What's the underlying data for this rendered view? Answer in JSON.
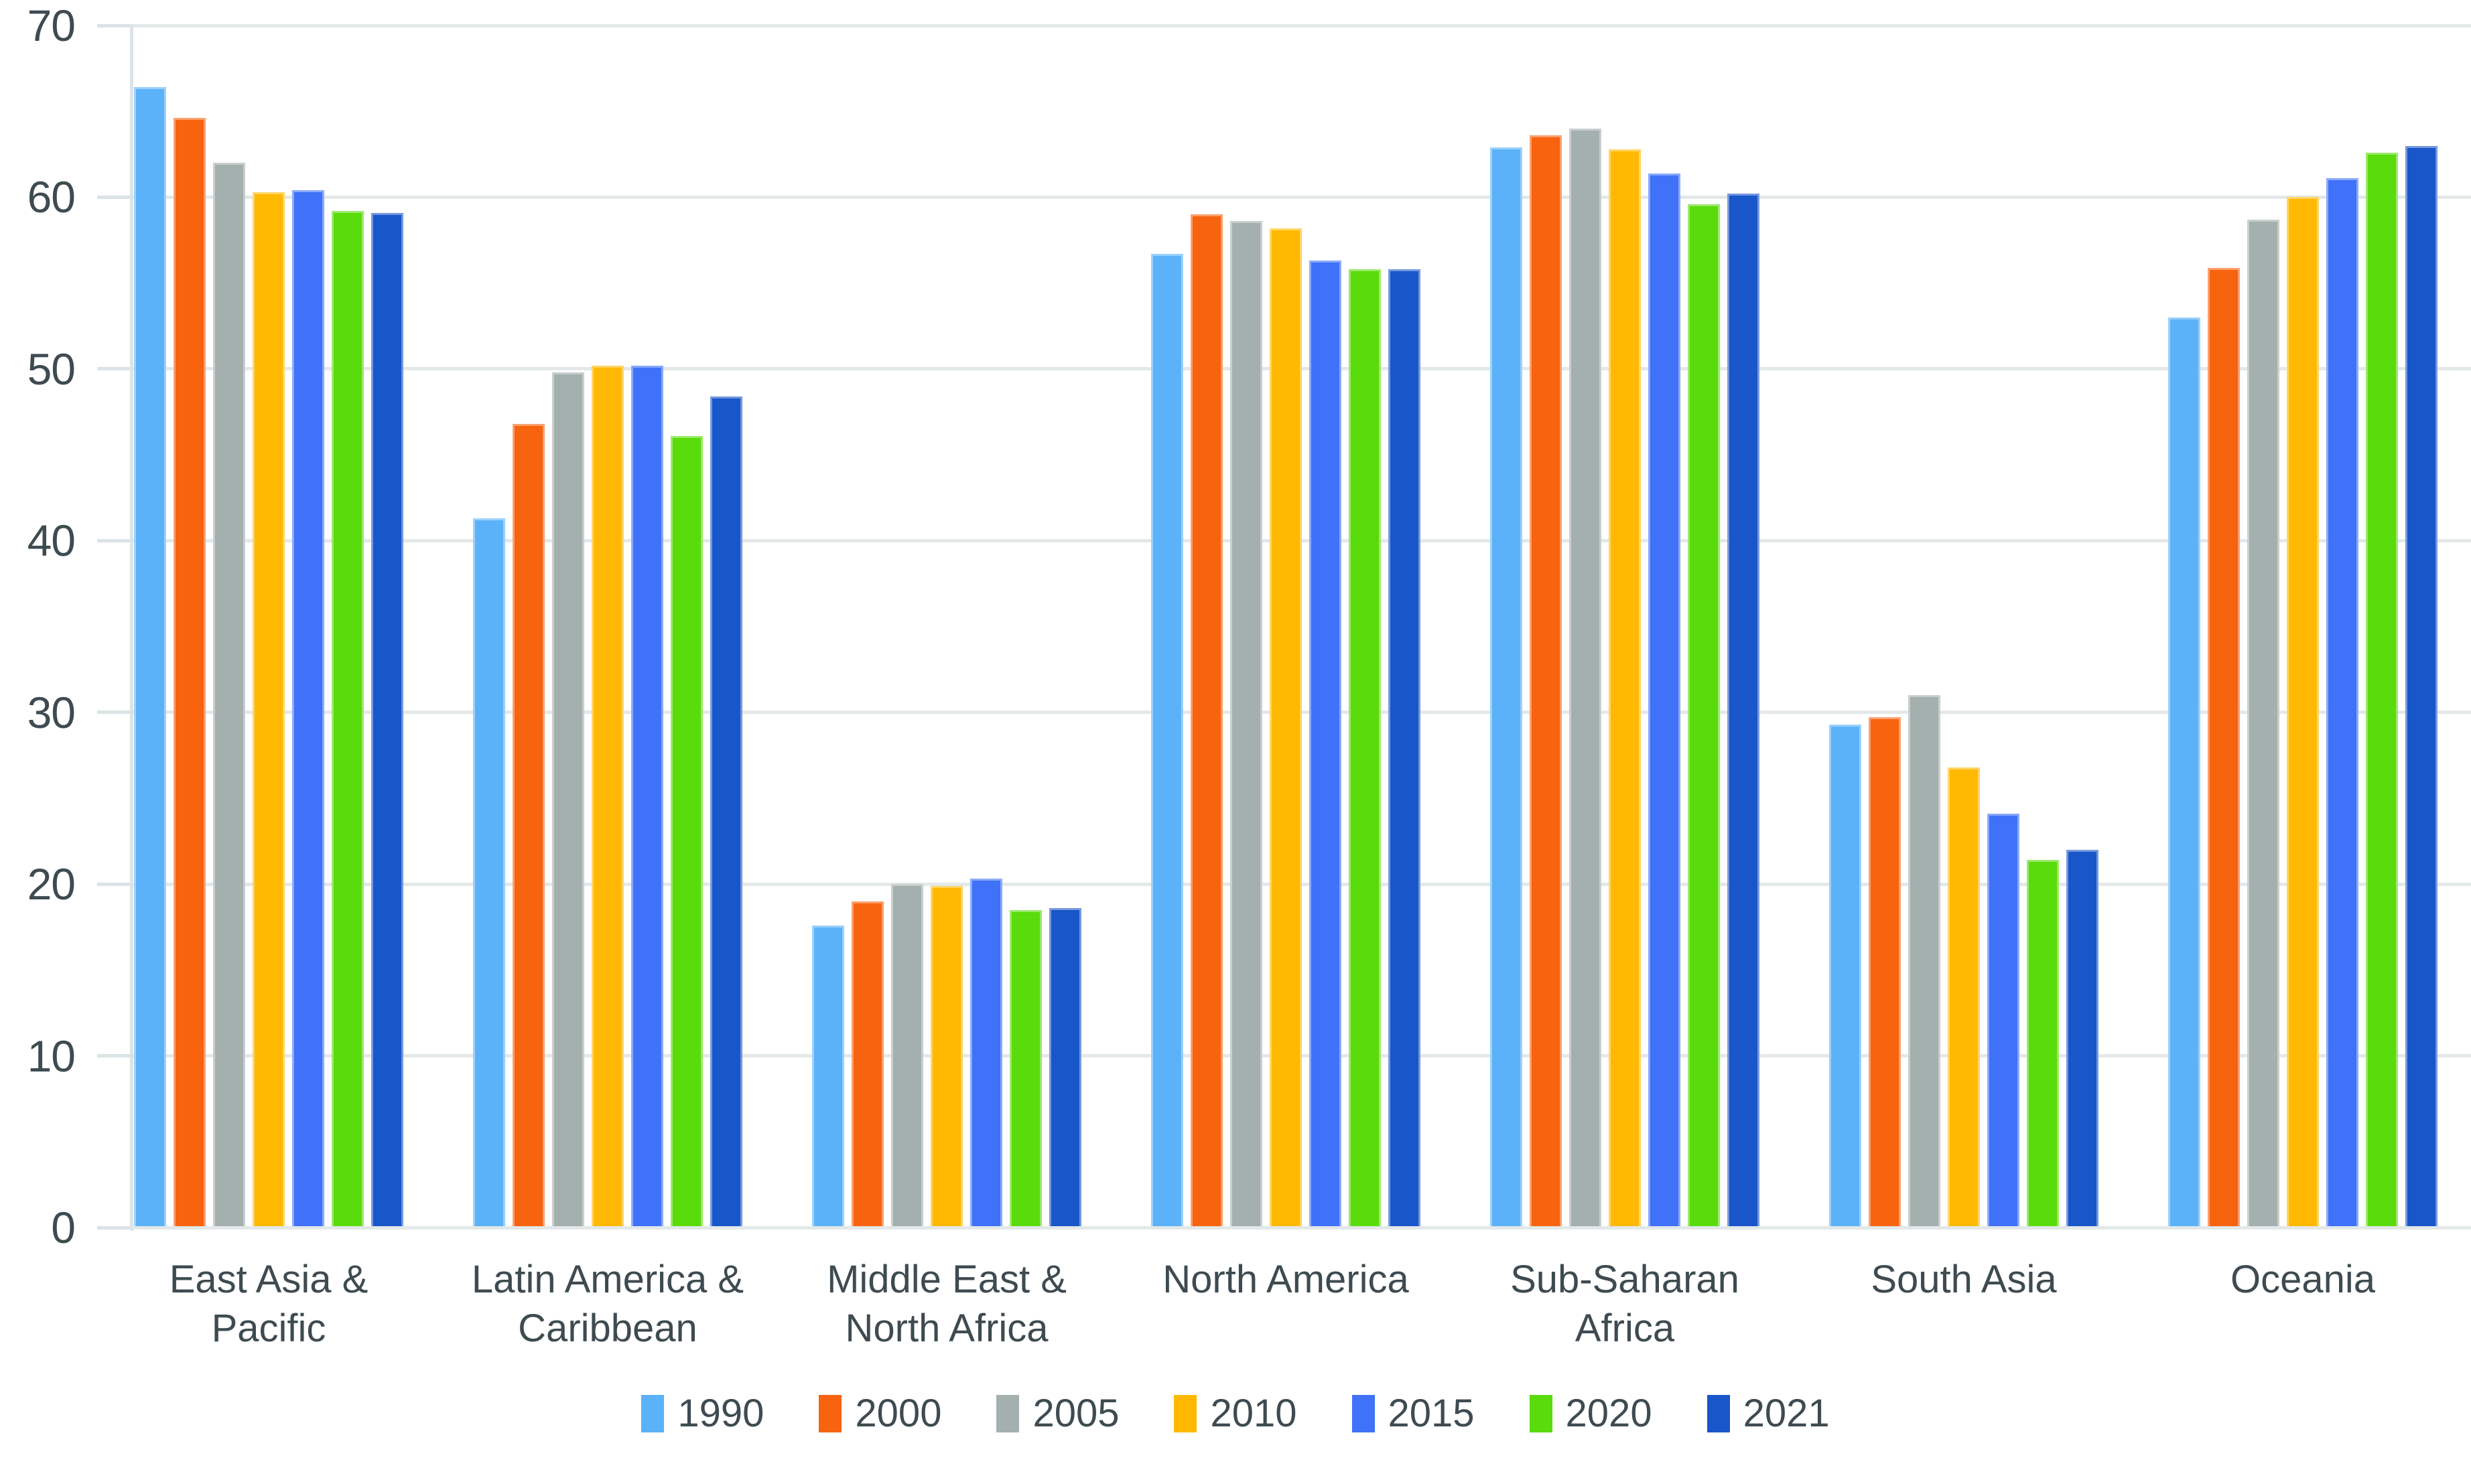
{
  "chart_data": {
    "type": "bar",
    "title": "",
    "xlabel": "",
    "ylabel": "",
    "ylim": [
      0,
      70
    ],
    "yticks": [
      0,
      10,
      20,
      30,
      40,
      50,
      60,
      70
    ],
    "grid": true,
    "legend_position": "bottom",
    "categories": [
      {
        "label_lines": [
          "East Asia &",
          "Pacific"
        ]
      },
      {
        "label_lines": [
          "Latin America &",
          "Caribbean"
        ]
      },
      {
        "label_lines": [
          "Middle East &",
          "North Africa"
        ]
      },
      {
        "label_lines": [
          "North America"
        ]
      },
      {
        "label_lines": [
          "Sub-Saharan",
          "Africa"
        ]
      },
      {
        "label_lines": [
          "South Asia"
        ]
      },
      {
        "label_lines": [
          "Oceania"
        ]
      }
    ],
    "series": [
      {
        "name": "1990",
        "color": "#5BB2F8",
        "values": [
          66.4,
          41.3,
          17.6,
          56.7,
          62.9,
          29.3,
          53.0
        ]
      },
      {
        "name": "2000",
        "color": "#F7630F",
        "values": [
          64.6,
          46.8,
          19.0,
          59.0,
          63.6,
          29.7,
          55.9
        ]
      },
      {
        "name": "2005",
        "color": "#A4B0AE",
        "values": [
          62.0,
          49.8,
          20.0,
          58.6,
          64.0,
          31.0,
          58.7
        ]
      },
      {
        "name": "2010",
        "color": "#FFB903",
        "values": [
          60.3,
          50.2,
          19.9,
          58.2,
          62.8,
          26.8,
          60.0
        ]
      },
      {
        "name": "2015",
        "color": "#3F72F8",
        "values": [
          60.4,
          50.2,
          20.3,
          56.3,
          61.4,
          24.1,
          61.1
        ]
      },
      {
        "name": "2020",
        "color": "#5ADB0C",
        "values": [
          59.2,
          46.1,
          18.5,
          55.8,
          59.6,
          21.4,
          62.6
        ]
      },
      {
        "name": "2021",
        "color": "#1956C9",
        "values": [
          59.1,
          48.4,
          18.6,
          55.8,
          60.2,
          22.0,
          63.0
        ]
      }
    ],
    "colors": {
      "text": "#3E4B51",
      "gridline": "#E3E8E9",
      "axis_line": "#DBE3E6",
      "background": "#FFFFFF"
    }
  }
}
